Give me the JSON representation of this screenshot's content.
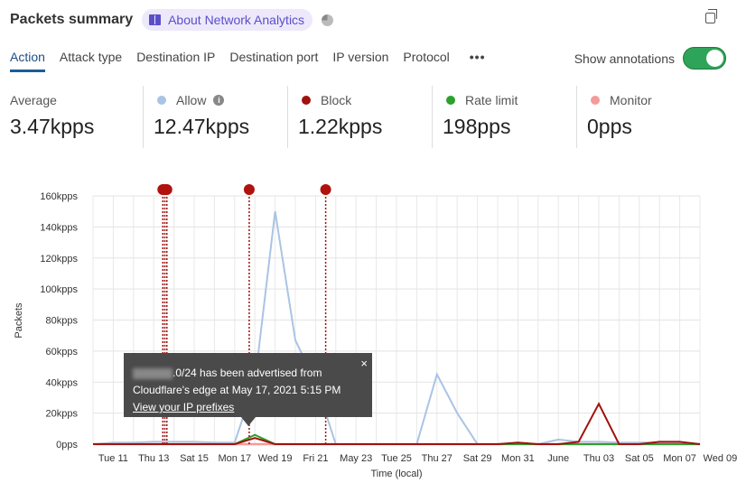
{
  "header": {
    "title": "Packets summary",
    "about_label": "About Network Analytics",
    "icons": [
      "book-icon",
      "pie-chart-icon",
      "copy-icon"
    ]
  },
  "tabs": [
    {
      "label": "Action",
      "active": true
    },
    {
      "label": "Attack type"
    },
    {
      "label": "Destination IP"
    },
    {
      "label": "Destination port"
    },
    {
      "label": "IP version"
    },
    {
      "label": "Protocol"
    }
  ],
  "more_label": "•••",
  "annotations_toggle": {
    "label": "Show annotations",
    "on": true,
    "color": "#2ea458"
  },
  "stats": [
    {
      "label": "Average",
      "value": "3.47kpps"
    },
    {
      "label": "Allow",
      "value": "12.47kpps",
      "color": "#a9c4e4",
      "info": "i"
    },
    {
      "label": "Block",
      "value": "1.22kpps",
      "color": "#a0120e"
    },
    {
      "label": "Rate limit",
      "value": "198pps",
      "color": "#2ca02c"
    },
    {
      "label": "Monitor",
      "value": "0pps",
      "color": "#f59a9a"
    }
  ],
  "tooltip": {
    "text1": ".0/24 has been advertised from",
    "text2": "Cloudflare's edge at May 17, 2021 5:15 PM",
    "link": "View your IP prefixes",
    "close": "×"
  },
  "chart_data": {
    "type": "line",
    "xlabel": "Time (local)",
    "ylabel": "Packets",
    "x": [
      "May 10",
      "May 11",
      "May 12",
      "May 13",
      "May 14",
      "May 15",
      "May 16",
      "May 17",
      "May 18",
      "May 19",
      "May 20",
      "May 21",
      "May 22",
      "May 23",
      "May 24",
      "May 25",
      "May 26",
      "May 27",
      "May 28",
      "May 29",
      "May 30",
      "May 31",
      "Jun 01",
      "Jun 02",
      "Jun 03",
      "Jun 04",
      "Jun 05",
      "Jun 06",
      "Jun 07",
      "Jun 08",
      "Jun 09"
    ],
    "xticks": [
      "Tue 11",
      "Thu 13",
      "Sat 15",
      "Mon 17",
      "Wed 19",
      "Fri 21",
      "May 23",
      "Tue 25",
      "Thu 27",
      "Sat 29",
      "Mon 31",
      "June",
      "Thu 03",
      "Sat 05",
      "Mon 07",
      "Wed 09"
    ],
    "yticks": [
      "0pps",
      "20kpps",
      "40kpps",
      "60kpps",
      "80kpps",
      "100kpps",
      "120kpps",
      "140kpps",
      "160kpps"
    ],
    "ylim": [
      0,
      160000
    ],
    "grid": true,
    "series": [
      {
        "name": "Allow",
        "color": "#a9c4e4",
        "values": [
          0,
          1000,
          1000,
          1500,
          1500,
          1500,
          1000,
          1000,
          40000,
          150000,
          67000,
          40000,
          0,
          0,
          0,
          0,
          0,
          45000,
          20000,
          0,
          0,
          0,
          0,
          3000,
          1500,
          1500,
          1000,
          1000,
          1000,
          1000,
          0
        ]
      },
      {
        "name": "Monitor",
        "color": "#f59a9a",
        "values": [
          0,
          0,
          0,
          0,
          0,
          0,
          0,
          0,
          0,
          0,
          0,
          0,
          0,
          0,
          0,
          0,
          0,
          0,
          0,
          0,
          0,
          0,
          0,
          0,
          0,
          0,
          0,
          0,
          0,
          0,
          0
        ]
      },
      {
        "name": "Rate limit",
        "color": "#2ca02c",
        "values": [
          0,
          0,
          0,
          0,
          0,
          0,
          0,
          0,
          6000,
          0,
          0,
          0,
          0,
          0,
          0,
          0,
          0,
          0,
          0,
          0,
          0,
          0,
          0,
          0,
          0,
          0,
          0,
          0,
          0,
          0,
          0
        ]
      },
      {
        "name": "Block",
        "color": "#a0120e",
        "values": [
          0,
          0,
          0,
          0,
          0,
          0,
          0,
          0,
          4000,
          0,
          0,
          0,
          0,
          0,
          0,
          0,
          0,
          0,
          0,
          0,
          0,
          1000,
          0,
          0,
          1500,
          26000,
          0,
          0,
          1500,
          1500,
          0
        ]
      }
    ],
    "annotations": [
      {
        "day": 3.45
      },
      {
        "day": 3.55
      },
      {
        "day": 3.65
      },
      {
        "day": 7.72
      },
      {
        "day": 11.5
      }
    ]
  }
}
